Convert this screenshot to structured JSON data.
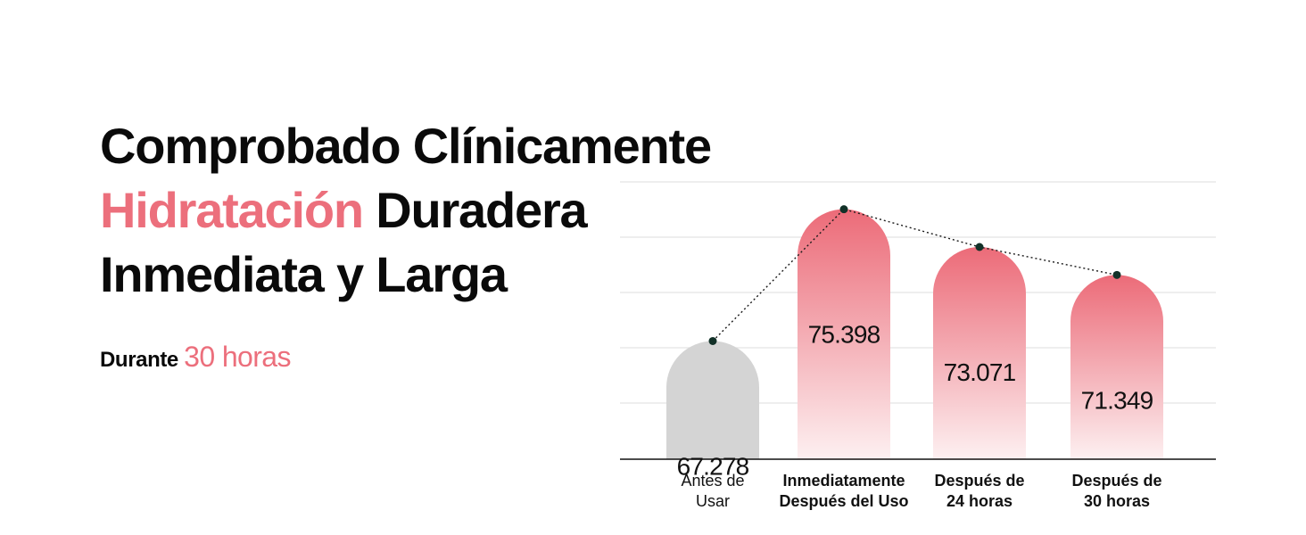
{
  "heading": {
    "line1": "Comprobado Clínicamente",
    "line2_accent": "Hidratación",
    "line2_rest": "Duradera",
    "line3": "Inmediata y Larga"
  },
  "subheading": {
    "prefix": "Durante",
    "accent": "30 horas"
  },
  "colors": {
    "accent": "#ec6f7c",
    "baseline_bar": "#d4d4d4",
    "text": "#0a0a0a"
  },
  "chart_data": {
    "type": "bar",
    "title": "",
    "xlabel": "",
    "ylabel": "",
    "ylim": [
      60,
      77.3
    ],
    "grid": true,
    "trend_line": "dotted",
    "categories": [
      {
        "lines": [
          "Antes de",
          "Usar"
        ],
        "bold": false
      },
      {
        "lines": [
          "Inmediatamente",
          "Después del Uso"
        ],
        "bold": true
      },
      {
        "lines": [
          "Después de",
          "24 horas"
        ],
        "bold": true
      },
      {
        "lines": [
          "Después de",
          "30 horas"
        ],
        "bold": true
      }
    ],
    "values": [
      67.278,
      75.398,
      73.071,
      71.349
    ],
    "value_labels": [
      "67.278",
      "75.398",
      "73.071",
      "71.349"
    ]
  }
}
